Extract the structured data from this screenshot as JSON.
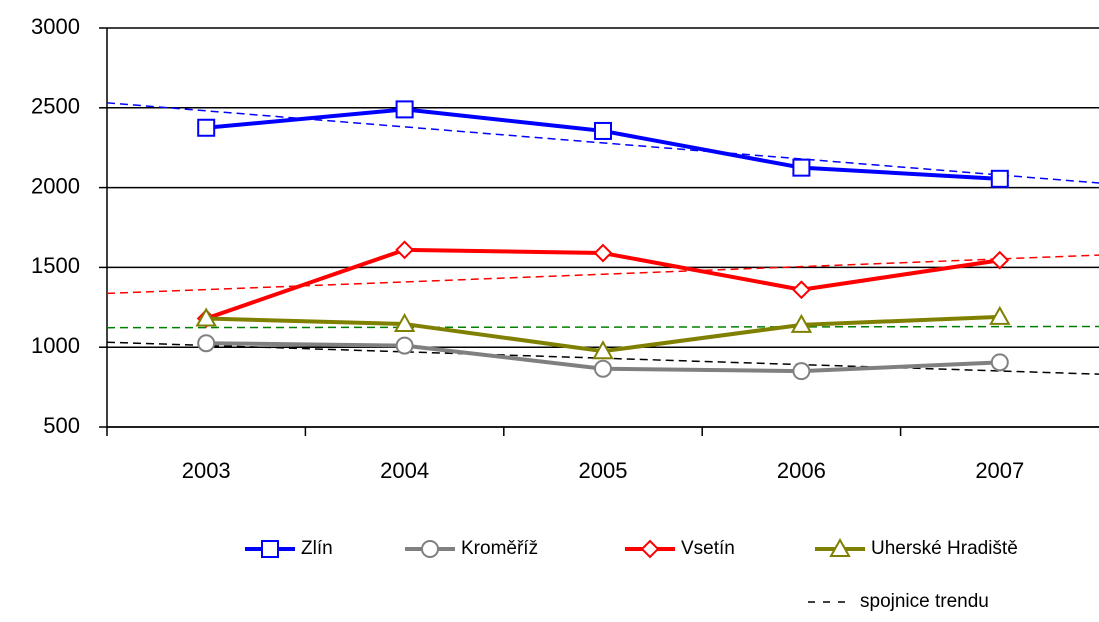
{
  "chart_data": {
    "type": "line",
    "categories": [
      "2003",
      "2004",
      "2005",
      "2006",
      "2007"
    ],
    "series": [
      {
        "name": "Zlín",
        "color": "#0000ff",
        "marker": "square",
        "trend_color": "#0000ff",
        "values": [
          2375,
          2490,
          2355,
          2125,
          2055
        ]
      },
      {
        "name": "Kroměříž",
        "color": "#808080",
        "marker": "circle",
        "trend_color": "#000000",
        "values": [
          1025,
          1010,
          865,
          850,
          905
        ]
      },
      {
        "name": "Vsetín",
        "color": "#ff0000",
        "marker": "diamond",
        "trend_color": "#ff0000",
        "values": [
          1180,
          1610,
          1590,
          1360,
          1545
        ]
      },
      {
        "name": "Uherské Hradiště",
        "color": "#808000",
        "marker": "triangle",
        "trend_color": "#008000",
        "values": [
          1180,
          1145,
          975,
          1140,
          1190
        ]
      }
    ],
    "trendline_label": "spojnice trendu",
    "ylim": [
      500,
      3000
    ],
    "yticks": [
      500,
      1000,
      1500,
      2000,
      2500,
      3000
    ],
    "grid": true
  }
}
